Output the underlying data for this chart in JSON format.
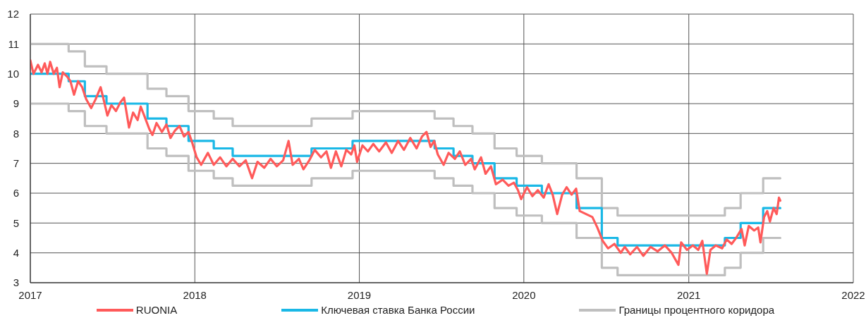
{
  "chart_data": {
    "type": "line",
    "xlim": [
      "2017",
      "2022"
    ],
    "xticks": [
      "2017",
      "2018",
      "2019",
      "2020",
      "2021",
      "2022"
    ],
    "ylim": [
      3,
      12
    ],
    "yticks": [
      3,
      4,
      5,
      6,
      7,
      8,
      9,
      10,
      11,
      12
    ],
    "grid": true,
    "legend": "bottom",
    "series": [
      {
        "name": "RUONIA",
        "color": "#ff5a5a",
        "x": [
          "2017-01-01",
          "2017-01-08",
          "2017-01-18",
          "2017-01-26",
          "2017-02-02",
          "2017-02-08",
          "2017-02-14",
          "2017-02-22",
          "2017-03-01",
          "2017-03-07",
          "2017-03-14",
          "2017-03-24",
          "2017-03-31",
          "2017-04-08",
          "2017-04-17",
          "2017-04-26",
          "2017-05-05",
          "2017-05-16",
          "2017-05-26",
          "2017-06-06",
          "2017-06-14",
          "2017-06-21",
          "2017-06-30",
          "2017-07-10",
          "2017-07-20",
          "2017-07-28",
          "2017-08-08",
          "2017-08-17",
          "2017-08-27",
          "2017-09-03",
          "2017-09-12",
          "2017-09-22",
          "2017-09-29",
          "2017-10-08",
          "2017-10-20",
          "2017-10-30",
          "2017-11-08",
          "2017-11-18",
          "2017-11-28",
          "2017-12-08",
          "2017-12-18",
          "2017-12-26",
          "2018-01-05",
          "2018-01-15",
          "2018-01-30",
          "2018-02-12",
          "2018-02-26",
          "2018-03-12",
          "2018-03-26",
          "2018-04-10",
          "2018-04-24",
          "2018-05-08",
          "2018-05-20",
          "2018-06-04",
          "2018-06-18",
          "2018-07-02",
          "2018-07-16",
          "2018-07-28",
          "2018-08-06",
          "2018-08-20",
          "2018-08-30",
          "2018-09-12",
          "2018-09-24",
          "2018-10-08",
          "2018-10-20",
          "2018-10-30",
          "2018-11-10",
          "2018-11-22",
          "2018-12-03",
          "2018-12-14",
          "2018-12-21",
          "2018-12-27",
          "2019-01-08",
          "2019-01-20",
          "2019-02-01",
          "2019-02-14",
          "2019-03-01",
          "2019-03-14",
          "2019-03-28",
          "2019-04-10",
          "2019-04-24",
          "2019-05-08",
          "2019-05-20",
          "2019-05-30",
          "2019-06-08",
          "2019-06-16",
          "2019-06-24",
          "2019-07-07",
          "2019-07-18",
          "2019-08-01",
          "2019-08-12",
          "2019-08-24",
          "2019-09-06",
          "2019-09-14",
          "2019-09-28",
          "2019-10-08",
          "2019-10-20",
          "2019-10-31",
          "2019-11-15",
          "2019-11-28",
          "2019-12-10",
          "2019-12-19",
          "2019-12-26",
          "2020-01-08",
          "2020-01-20",
          "2020-02-01",
          "2020-02-14",
          "2020-02-25",
          "2020-03-05",
          "2020-03-15",
          "2020-03-26",
          "2020-04-05",
          "2020-04-16",
          "2020-04-26",
          "2020-05-04",
          "2020-05-18",
          "2020-06-01",
          "2020-06-12",
          "2020-06-24",
          "2020-07-06",
          "2020-07-20",
          "2020-08-03",
          "2020-08-12",
          "2020-08-24",
          "2020-09-08",
          "2020-09-22",
          "2020-10-08",
          "2020-10-24",
          "2020-11-09",
          "2020-11-24",
          "2020-12-09",
          "2020-12-15",
          "2020-12-28",
          "2021-01-10",
          "2021-01-22",
          "2021-01-31",
          "2021-02-10",
          "2021-02-18",
          "2021-03-02",
          "2021-03-16",
          "2021-03-26",
          "2021-04-06",
          "2021-04-16",
          "2021-04-28",
          "2021-05-05",
          "2021-05-14",
          "2021-05-26",
          "2021-06-04",
          "2021-06-09",
          "2021-06-17",
          "2021-06-24",
          "2021-06-30",
          "2021-07-08",
          "2021-07-15",
          "2021-07-20",
          "2021-07-23"
        ],
        "values": [
          10.45,
          10.0,
          10.3,
          10.05,
          10.35,
          10.0,
          10.4,
          10.0,
          10.2,
          9.55,
          10.05,
          9.9,
          9.75,
          9.3,
          9.75,
          9.55,
          9.15,
          8.85,
          9.15,
          9.55,
          9.05,
          8.6,
          8.95,
          8.75,
          9.05,
          9.2,
          8.2,
          8.7,
          8.45,
          8.9,
          8.55,
          8.15,
          7.95,
          8.35,
          8.05,
          8.3,
          7.85,
          8.1,
          8.25,
          7.9,
          8.05,
          7.7,
          7.2,
          6.95,
          7.35,
          6.95,
          7.2,
          6.9,
          7.15,
          6.9,
          7.1,
          6.5,
          7.05,
          6.85,
          7.15,
          6.9,
          7.1,
          7.75,
          6.95,
          7.15,
          6.8,
          7.1,
          7.45,
          7.2,
          7.4,
          6.85,
          7.4,
          6.9,
          7.45,
          7.3,
          7.6,
          7.05,
          7.6,
          7.4,
          7.65,
          7.4,
          7.7,
          7.35,
          7.75,
          7.45,
          7.85,
          7.5,
          7.9,
          8.05,
          7.55,
          7.75,
          7.3,
          6.95,
          7.35,
          7.15,
          7.4,
          6.95,
          7.15,
          6.8,
          7.2,
          6.65,
          6.9,
          6.3,
          6.45,
          6.25,
          6.35,
          6.1,
          5.8,
          6.2,
          5.9,
          6.1,
          5.85,
          6.3,
          5.95,
          5.3,
          5.95,
          6.2,
          5.95,
          6.15,
          5.4,
          5.3,
          5.2,
          4.85,
          4.4,
          4.15,
          4.3,
          4.0,
          4.2,
          3.95,
          4.2,
          3.9,
          4.2,
          4.05,
          4.25,
          4.0,
          3.6,
          4.35,
          4.1,
          4.25,
          4.1,
          4.4,
          3.3,
          4.1,
          4.25,
          4.15,
          4.45,
          4.3,
          4.5,
          4.8,
          4.25,
          4.9,
          4.75,
          4.85,
          4.35,
          5.2,
          5.4,
          5.05,
          5.5,
          5.3,
          5.85,
          5.75
        ]
      },
      {
        "name": "Ключевая ставка Банка России",
        "type": "step",
        "color": "#1ab8e6",
        "x": [
          "2017-01-01",
          "2017-03-27",
          "2017-05-02",
          "2017-06-19",
          "2017-09-18",
          "2017-10-30",
          "2017-12-18",
          "2018-02-12",
          "2018-03-26",
          "2018-09-17",
          "2018-12-17",
          "2019-06-17",
          "2019-07-29",
          "2019-09-09",
          "2019-10-28",
          "2019-12-16",
          "2020-02-10",
          "2020-04-27",
          "2020-06-22",
          "2020-07-27",
          "2021-03-22",
          "2021-04-26",
          "2021-06-15",
          "2021-07-23"
        ],
        "values": [
          10,
          9.75,
          9.25,
          9,
          8.5,
          8.25,
          7.75,
          7.5,
          7.25,
          7.5,
          7.75,
          7.5,
          7.25,
          7,
          6.5,
          6.25,
          6,
          5.5,
          4.5,
          4.25,
          4.5,
          5,
          5.5,
          5.5
        ]
      },
      {
        "name": "Границы процентного коридора",
        "type": "step",
        "color": "#bfbfbf",
        "x": [
          "2017-01-01",
          "2017-03-27",
          "2017-05-02",
          "2017-06-19",
          "2017-09-18",
          "2017-10-30",
          "2017-12-18",
          "2018-02-12",
          "2018-03-26",
          "2018-09-17",
          "2018-12-17",
          "2019-06-17",
          "2019-07-29",
          "2019-09-09",
          "2019-10-28",
          "2019-12-16",
          "2020-02-10",
          "2020-04-27",
          "2020-06-22",
          "2020-07-27",
          "2021-03-22",
          "2021-04-26",
          "2021-06-15",
          "2021-07-23"
        ],
        "values": [
          11,
          10.75,
          10.25,
          10,
          9.5,
          9.25,
          8.75,
          8.5,
          8.25,
          8.5,
          8.75,
          8.5,
          8.25,
          8,
          7.5,
          7.25,
          7,
          6.5,
          5.5,
          5.25,
          5.5,
          6,
          6.5,
          6.5
        ]
      },
      {
        "type": "step",
        "color": "#bfbfbf",
        "x": [
          "2017-01-01",
          "2017-03-27",
          "2017-05-02",
          "2017-06-19",
          "2017-09-18",
          "2017-10-30",
          "2017-12-18",
          "2018-02-12",
          "2018-03-26",
          "2018-09-17",
          "2018-12-17",
          "2019-06-17",
          "2019-07-29",
          "2019-09-09",
          "2019-10-28",
          "2019-12-16",
          "2020-02-10",
          "2020-04-27",
          "2020-06-22",
          "2020-07-27",
          "2021-03-22",
          "2021-04-26",
          "2021-06-15",
          "2021-07-23"
        ],
        "values": [
          9,
          8.75,
          8.25,
          8,
          7.5,
          7.25,
          6.75,
          6.5,
          6.25,
          6.5,
          6.75,
          6.5,
          6.25,
          6,
          5.5,
          5.25,
          5,
          4.5,
          3.5,
          3.25,
          3.5,
          4,
          4.5,
          4.5
        ]
      }
    ]
  }
}
